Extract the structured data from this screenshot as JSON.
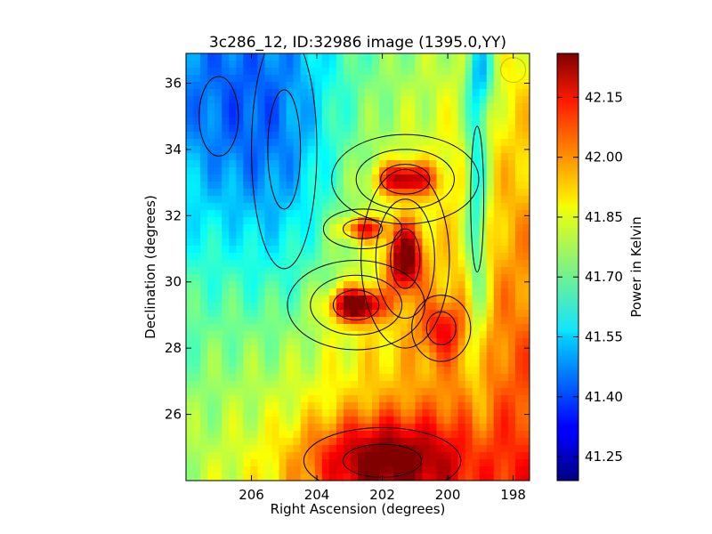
{
  "chart_data": {
    "type": "heatmap",
    "title": "3c286_12, ID:32986 image (1395.0,YY)",
    "xlabel": "Right Ascension (degrees)",
    "ylabel": "Declination (degrees)",
    "colorbar_label": "Power in Kelvin",
    "xlim": [
      208.0,
      197.5
    ],
    "ylim": [
      24.0,
      36.9
    ],
    "x_ticks": [
      "206",
      "204",
      "202",
      "200",
      "198"
    ],
    "x_tick_values": [
      206,
      204,
      202,
      200,
      198
    ],
    "y_ticks": [
      "26",
      "28",
      "30",
      "32",
      "34",
      "36"
    ],
    "y_tick_values": [
      26,
      28,
      30,
      32,
      34,
      36
    ],
    "colorbar_ticks": [
      "41.25",
      "41.40",
      "41.55",
      "41.70",
      "41.85",
      "42.00",
      "42.15"
    ],
    "colorbar_tick_values": [
      41.25,
      41.4,
      41.55,
      41.7,
      41.85,
      42.0,
      42.15
    ],
    "colorbar_range": [
      41.19,
      42.26
    ],
    "colormap": "jet",
    "contours": true,
    "beam_marker": {
      "x": 198.0,
      "y": 36.4,
      "color": "#c8c800"
    }
  }
}
